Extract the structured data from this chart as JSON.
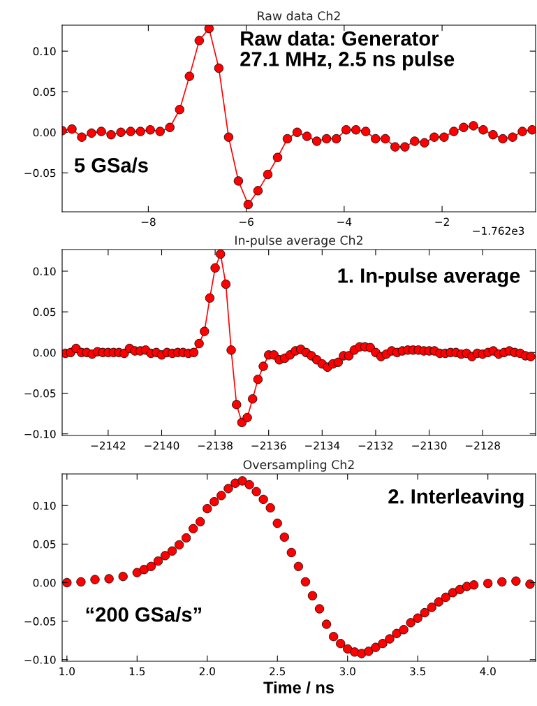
{
  "chart_data": [
    {
      "type": "line",
      "title": "Raw data Ch2",
      "marker": "circle",
      "line_style": "solid",
      "grid": false,
      "annotations": [
        "Raw data: Generator\n27.1 MHz, 2.5 ns pulse",
        "5 GSa/s",
        "−1.762e3"
      ],
      "xlim": [
        -9.76,
        -0.09
      ],
      "ylim": [
        -0.098,
        0.132
      ],
      "xticks": [
        {
          "value": -8,
          "label": "−8"
        },
        {
          "value": -6,
          "label": "−6"
        },
        {
          "value": -4,
          "label": "−4"
        },
        {
          "value": -2,
          "label": "−2"
        }
      ],
      "yticks": [
        {
          "value": -0.05,
          "label": "−0.05"
        },
        {
          "value": 0.0,
          "label": "0.00"
        },
        {
          "value": 0.05,
          "label": "0.05"
        },
        {
          "value": 0.1,
          "label": "0.10"
        }
      ],
      "series": [
        {
          "color": "#ff0000",
          "x": [
            -9.76,
            -9.56,
            -9.36,
            -9.16,
            -8.96,
            -8.76,
            -8.56,
            -8.36,
            -8.16,
            -7.96,
            -7.76,
            -7.56,
            -7.36,
            -7.16,
            -6.96,
            -6.76,
            -6.56,
            -6.36,
            -6.16,
            -5.96,
            -5.76,
            -5.56,
            -5.36,
            -5.16,
            -4.96,
            -4.76,
            -4.56,
            -4.36,
            -4.16,
            -3.96,
            -3.76,
            -3.56,
            -3.36,
            -3.16,
            -2.96,
            -2.76,
            -2.56,
            -2.36,
            -2.16,
            -1.96,
            -1.76,
            -1.56,
            -1.36,
            -1.16,
            -0.96,
            -0.76,
            -0.56,
            -0.36,
            -0.16
          ],
          "values": [
            0.002,
            0.004,
            -0.006,
            -0.001,
            0.001,
            -0.003,
            0.0,
            0.001,
            0.001,
            0.003,
            0.001,
            0.006,
            0.028,
            0.069,
            0.113,
            0.128,
            0.079,
            -0.006,
            -0.06,
            -0.089,
            -0.072,
            -0.052,
            -0.031,
            -0.008,
            0.0,
            -0.005,
            -0.011,
            -0.008,
            -0.008,
            0.003,
            0.003,
            0.001,
            -0.008,
            -0.008,
            -0.018,
            -0.018,
            -0.011,
            -0.013,
            -0.006,
            -0.006,
            0.001,
            0.006,
            0.008,
            0.003,
            -0.003,
            -0.008,
            -0.006,
            0.001,
            0.003
          ]
        }
      ]
    },
    {
      "type": "line",
      "title": "In-pulse average Ch2",
      "marker": "circle",
      "line_style": "solid",
      "grid": false,
      "annotations": [
        "1. In-pulse average"
      ],
      "xlim": [
        -2143.72,
        -2126.02
      ],
      "ylim": [
        -0.102,
        0.1266
      ],
      "xticks": [
        {
          "value": -2142,
          "label": "−2142"
        },
        {
          "value": -2140,
          "label": "−2140"
        },
        {
          "value": -2138,
          "label": "−2138"
        },
        {
          "value": -2136,
          "label": "−2136"
        },
        {
          "value": -2134,
          "label": "−2134"
        },
        {
          "value": -2132,
          "label": "−2132"
        },
        {
          "value": -2130,
          "label": "−2130"
        },
        {
          "value": -2128,
          "label": "−2128"
        }
      ],
      "yticks": [
        {
          "value": -0.1,
          "label": "−0.10"
        },
        {
          "value": -0.05,
          "label": "−0.05"
        },
        {
          "value": 0.0,
          "label": "0.00"
        },
        {
          "value": 0.05,
          "label": "0.05"
        },
        {
          "value": 0.1,
          "label": "0.10"
        }
      ],
      "series": [
        {
          "color": "#ff0000",
          "x": [
            -2143.6,
            -2143.4,
            -2143.2,
            -2143.0,
            -2142.8,
            -2142.6,
            -2142.4,
            -2142.2,
            -2142.0,
            -2141.8,
            -2141.6,
            -2141.4,
            -2141.2,
            -2141.0,
            -2140.8,
            -2140.6,
            -2140.4,
            -2140.2,
            -2140.0,
            -2139.8,
            -2139.6,
            -2139.4,
            -2139.2,
            -2139.0,
            -2138.8,
            -2138.6,
            -2138.4,
            -2138.2,
            -2138.0,
            -2137.8,
            -2137.6,
            -2137.4,
            -2137.2,
            -2137.0,
            -2136.8,
            -2136.6,
            -2136.4,
            -2136.2,
            -2136.0,
            -2135.8,
            -2135.6,
            -2135.4,
            -2135.2,
            -2135.0,
            -2134.8,
            -2134.6,
            -2134.4,
            -2134.2,
            -2134.0,
            -2133.8,
            -2133.6,
            -2133.4,
            -2133.2,
            -2133.0,
            -2132.8,
            -2132.6,
            -2132.4,
            -2132.2,
            -2132.0,
            -2131.8,
            -2131.6,
            -2131.4,
            -2131.2,
            -2131.0,
            -2130.8,
            -2130.6,
            -2130.4,
            -2130.2,
            -2130.0,
            -2129.8,
            -2129.6,
            -2129.4,
            -2129.2,
            -2129.0,
            -2128.8,
            -2128.6,
            -2128.4,
            -2128.2,
            -2128.0,
            -2127.8,
            -2127.6,
            -2127.4,
            -2127.2,
            -2127.0,
            -2126.8,
            -2126.6,
            -2126.4,
            -2126.2
          ],
          "values": [
            -0.001,
            0.0,
            0.005,
            0.0,
            0.0,
            -0.002,
            0.001,
            0.0,
            0.0,
            0.0,
            0.0,
            -0.001,
            0.005,
            0.002,
            0.002,
            0.003,
            -0.001,
            0.0,
            -0.003,
            0.0,
            -0.001,
            0.0,
            0.0,
            -0.001,
            0.0,
            0.011,
            0.026,
            0.067,
            0.104,
            0.121,
            0.084,
            0.003,
            -0.064,
            -0.086,
            -0.08,
            -0.057,
            -0.033,
            -0.017,
            -0.003,
            -0.003,
            -0.009,
            -0.007,
            -0.003,
            0.002,
            0.004,
            0.0,
            -0.004,
            -0.009,
            -0.014,
            -0.018,
            -0.014,
            -0.012,
            -0.004,
            -0.004,
            0.003,
            0.007,
            0.007,
            0.006,
            0.0,
            -0.005,
            -0.002,
            0.002,
            0.0,
            0.002,
            0.003,
            0.003,
            0.003,
            0.002,
            0.002,
            0.002,
            -0.001,
            -0.001,
            0.0,
            0.0,
            -0.002,
            -0.001,
            -0.005,
            -0.001,
            -0.002,
            0.0,
            0.002,
            -0.002,
            0.0,
            0.002,
            0.0,
            -0.001,
            -0.004,
            -0.005
          ]
        }
      ]
    },
    {
      "type": "scatter",
      "title": "Oversampling Ch2",
      "xlabel": "Time / ns",
      "marker": "circle",
      "grid": false,
      "annotations": [
        "2. Interleaving",
        "“200 GSa/s”"
      ],
      "xlim": [
        0.966,
        4.34
      ],
      "ylim": [
        -0.102,
        0.141
      ],
      "xticks": [
        {
          "value": 1.0,
          "label": "1.0"
        },
        {
          "value": 1.5,
          "label": "1.5"
        },
        {
          "value": 2.0,
          "label": "2.0"
        },
        {
          "value": 2.5,
          "label": "2.5"
        },
        {
          "value": 3.0,
          "label": "3.0"
        },
        {
          "value": 3.5,
          "label": "3.5"
        },
        {
          "value": 4.0,
          "label": "4.0"
        }
      ],
      "yticks": [
        {
          "value": -0.1,
          "label": "−0.10"
        },
        {
          "value": -0.05,
          "label": "−0.05"
        },
        {
          "value": 0.0,
          "label": "0.00"
        },
        {
          "value": 0.05,
          "label": "0.05"
        },
        {
          "value": 0.1,
          "label": "0.10"
        }
      ],
      "series": [
        {
          "color": "#ff0000",
          "x": [
            1.0,
            1.1,
            1.2,
            1.3,
            1.4,
            1.5,
            1.55,
            1.6,
            1.65,
            1.7,
            1.75,
            1.8,
            1.85,
            1.9,
            1.95,
            2.0,
            2.05,
            2.1,
            2.15,
            2.2,
            2.25,
            2.3,
            2.35,
            2.4,
            2.45,
            2.5,
            2.55,
            2.6,
            2.65,
            2.7,
            2.75,
            2.8,
            2.85,
            2.9,
            2.95,
            3.0,
            3.05,
            3.1,
            3.15,
            3.2,
            3.25,
            3.3,
            3.35,
            3.4,
            3.45,
            3.5,
            3.55,
            3.6,
            3.65,
            3.7,
            3.75,
            3.8,
            3.85,
            3.9,
            4.0,
            4.1,
            4.2,
            4.3
          ],
          "values": [
            0.0,
            0.001,
            0.004,
            0.005,
            0.008,
            0.013,
            0.017,
            0.021,
            0.028,
            0.035,
            0.041,
            0.049,
            0.058,
            0.07,
            0.079,
            0.096,
            0.105,
            0.113,
            0.122,
            0.129,
            0.132,
            0.127,
            0.118,
            0.108,
            0.097,
            0.077,
            0.059,
            0.039,
            0.021,
            0.001,
            -0.017,
            -0.034,
            -0.054,
            -0.07,
            -0.079,
            -0.086,
            -0.09,
            -0.092,
            -0.089,
            -0.084,
            -0.079,
            -0.073,
            -0.066,
            -0.061,
            -0.052,
            -0.046,
            -0.039,
            -0.032,
            -0.025,
            -0.019,
            -0.013,
            -0.009,
            -0.005,
            -0.003,
            -0.001,
            0.001,
            0.002,
            -0.002
          ]
        }
      ]
    }
  ]
}
